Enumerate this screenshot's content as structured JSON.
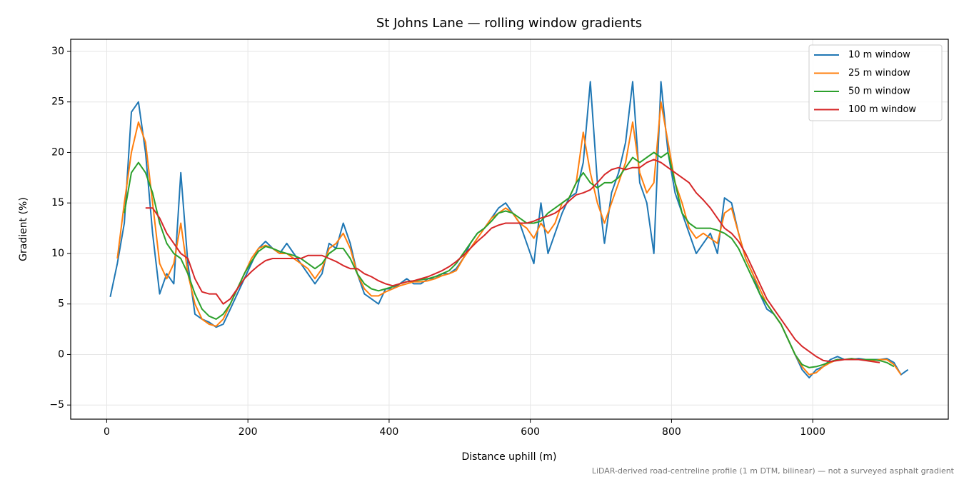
{
  "chart_data": {
    "type": "line",
    "title": "St Johns Lane — rolling window gradients",
    "x_label": "Distance uphill (m)",
    "y_label": "Gradient (%)",
    "footnote": "LiDAR-derived road-centreline profile (1 m DTM, bilinear) — not a surveyed asphalt gradient",
    "xlim": [
      -51,
      1192
    ],
    "ylim": [
      -6.4,
      31.2
    ],
    "xticks": [
      0,
      200,
      400,
      600,
      800,
      1000
    ],
    "yticks": [
      {
        "value": -5,
        "label": "−5"
      },
      0,
      5,
      10,
      15,
      20,
      25,
      30
    ],
    "grid": true,
    "legend": "upper right",
    "x": [
      5,
      15,
      25,
      35,
      45,
      55,
      65,
      75,
      85,
      95,
      105,
      115,
      125,
      135,
      145,
      155,
      165,
      175,
      185,
      195,
      205,
      215,
      225,
      235,
      245,
      255,
      265,
      275,
      285,
      295,
      305,
      315,
      325,
      335,
      345,
      355,
      365,
      375,
      385,
      395,
      405,
      415,
      425,
      435,
      445,
      455,
      465,
      475,
      485,
      495,
      505,
      515,
      525,
      535,
      545,
      555,
      565,
      575,
      585,
      595,
      605,
      615,
      625,
      635,
      645,
      655,
      665,
      675,
      685,
      695,
      705,
      715,
      725,
      735,
      745,
      755,
      765,
      775,
      785,
      795,
      805,
      815,
      825,
      835,
      845,
      855,
      865,
      875,
      885,
      895,
      905,
      915,
      925,
      935,
      945,
      955,
      965,
      975,
      985,
      995,
      1005,
      1015,
      1025,
      1035,
      1045,
      1055,
      1065,
      1075,
      1085,
      1095,
      1105,
      1115,
      1125,
      1135
    ],
    "series": [
      {
        "name": "10 m window",
        "color": "#1f77b4",
        "values": [
          5.7,
          9,
          13,
          24,
          25,
          20,
          12,
          6,
          8,
          7,
          18,
          9,
          4,
          3.5,
          3.2,
          2.7,
          3,
          4.5,
          6,
          7.5,
          9,
          10.5,
          11.2,
          10.5,
          10,
          11,
          10,
          9,
          8,
          7,
          8,
          11,
          10.5,
          13,
          11,
          8,
          6,
          5.5,
          5,
          6.5,
          6.5,
          7,
          7.5,
          7,
          7,
          7.5,
          7.5,
          8,
          8,
          8.5,
          9.5,
          11,
          12,
          12.5,
          13.5,
          14.5,
          15,
          14,
          13,
          11,
          9,
          15,
          10,
          12,
          14,
          15.5,
          16,
          19,
          27,
          17,
          11,
          16,
          18,
          21,
          27,
          17,
          15,
          10,
          27,
          20,
          16,
          14,
          12,
          10,
          11,
          12,
          10,
          15.5,
          15,
          12,
          9.5,
          8,
          6,
          4.5,
          4,
          3,
          1.5,
          0,
          -1.5,
          -2.3,
          -1.5,
          -1.2,
          -0.5,
          -0.2,
          -0.5,
          -0.5,
          -0.4,
          -0.5,
          -0.5,
          -0.5,
          -0.4,
          -0.8,
          -2,
          -1.5
        ]
      },
      {
        "name": "25 m window",
        "color": "#ff7f0e",
        "values": [
          null,
          9.5,
          15,
          20,
          23,
          21,
          15,
          9,
          7.5,
          9,
          13,
          8,
          5,
          3.5,
          3,
          2.8,
          3.5,
          5,
          6.5,
          8,
          9.5,
          10.5,
          10.8,
          10.5,
          10,
          10,
          9.5,
          9,
          8.5,
          7.5,
          8.5,
          10.5,
          11,
          12,
          10.5,
          8,
          6.5,
          5.8,
          5.8,
          6.2,
          6.5,
          6.8,
          7,
          7.2,
          7.2,
          7.3,
          7.5,
          7.8,
          8,
          8.3,
          9.5,
          10.5,
          11.5,
          12.5,
          13.5,
          14,
          14.5,
          14,
          13,
          12.5,
          11.5,
          13,
          12,
          13,
          15,
          15.5,
          17,
          22,
          18,
          15,
          13,
          15,
          17,
          19,
          23,
          18,
          16,
          17,
          25,
          21,
          17,
          15,
          12.5,
          11.5,
          12,
          11.5,
          11,
          14,
          14.5,
          12,
          9.5,
          8,
          6.5,
          5,
          4,
          3,
          1.5,
          0,
          -1.2,
          -2,
          -1.8,
          -1.2,
          -0.8,
          -0.5,
          -0.5,
          -0.5,
          -0.5,
          -0.5,
          -0.6,
          -0.5,
          -0.5,
          -1,
          -2,
          null
        ]
      },
      {
        "name": "50 m window",
        "color": "#2ca02c",
        "values": [
          null,
          null,
          14,
          18,
          19,
          18,
          16,
          13,
          11,
          10,
          9.5,
          8,
          6,
          4.5,
          3.8,
          3.5,
          4,
          5,
          6.5,
          8,
          9.2,
          10.2,
          10.7,
          10.5,
          10.2,
          10,
          9.8,
          9.5,
          9,
          8.5,
          9,
          10,
          10.5,
          10.5,
          9.5,
          8,
          7,
          6.5,
          6.3,
          6.5,
          6.7,
          7,
          7.2,
          7.3,
          7.4,
          7.5,
          7.7,
          8,
          8.3,
          9,
          10,
          11,
          12,
          12.5,
          13.2,
          14,
          14.2,
          14,
          13.5,
          13,
          13,
          13.2,
          14,
          14.5,
          15,
          15.5,
          17,
          18,
          17,
          16.5,
          17,
          17,
          17.5,
          18.5,
          19.5,
          19,
          19.5,
          20,
          19.5,
          20,
          17,
          14,
          13,
          12.5,
          12.5,
          12.5,
          12.3,
          12,
          11.5,
          10.5,
          9,
          7.5,
          6,
          5,
          4,
          3,
          1.5,
          0,
          -1,
          -1.3,
          -1.2,
          -1,
          -0.7,
          -0.5,
          -0.5,
          -0.4,
          -0.5,
          -0.5,
          -0.5,
          -0.6,
          -0.8,
          -1.2,
          null,
          null
        ]
      },
      {
        "name": "100 m window",
        "color": "#d62728",
        "values": [
          null,
          null,
          null,
          null,
          null,
          14.5,
          14.5,
          13.5,
          12,
          11,
          10,
          9.5,
          7.5,
          6.2,
          6,
          6,
          5,
          5.5,
          6.5,
          7.5,
          8.2,
          8.8,
          9.3,
          9.5,
          9.5,
          9.5,
          9.5,
          9.5,
          9.8,
          9.8,
          9.8,
          9.5,
          9.2,
          8.8,
          8.5,
          8.5,
          8,
          7.7,
          7.3,
          7,
          6.8,
          7,
          7.2,
          7.3,
          7.5,
          7.7,
          8,
          8.3,
          8.7,
          9.2,
          9.8,
          10.5,
          11.2,
          11.8,
          12.5,
          12.8,
          13,
          13,
          13,
          13,
          13.2,
          13.5,
          13.7,
          14,
          14.5,
          15.2,
          15.8,
          16,
          16.3,
          17,
          17.8,
          18.3,
          18.5,
          18.3,
          18.5,
          18.5,
          19,
          19.3,
          19,
          18.5,
          18,
          17.5,
          17,
          16,
          15.3,
          14.5,
          13.5,
          12.5,
          12,
          11.2,
          10,
          8.5,
          7,
          5.5,
          4.5,
          3.5,
          2.5,
          1.5,
          0.8,
          0.3,
          -0.2,
          -0.6,
          -0.7,
          -0.6,
          -0.5,
          -0.5,
          -0.5,
          -0.6,
          -0.7,
          -0.8,
          null,
          null,
          null,
          null
        ]
      }
    ]
  }
}
